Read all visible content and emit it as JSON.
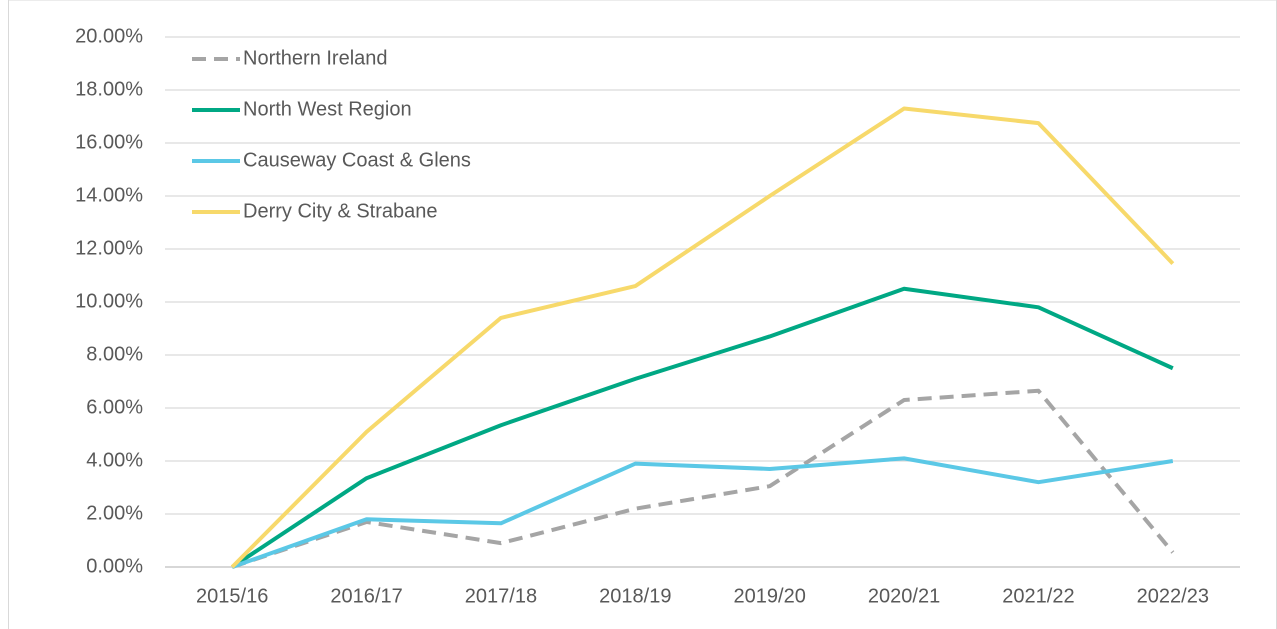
{
  "chart_data": {
    "type": "line",
    "categories": [
      "2015/16",
      "2016/17",
      "2017/18",
      "2018/19",
      "2019/20",
      "2020/21",
      "2021/22",
      "2022/23"
    ],
    "series": [
      {
        "name": "Northern Ireland",
        "color": "#a5a5a5",
        "dashed": true,
        "values": [
          0,
          1.7,
          0.9,
          2.2,
          3.05,
          6.3,
          6.65,
          0.55
        ]
      },
      {
        "name": "North West Region",
        "color": "#00a884",
        "values": [
          0,
          3.35,
          5.35,
          7.1,
          8.7,
          10.5,
          9.8,
          7.5
        ]
      },
      {
        "name": "Causeway Coast & Glens",
        "color": "#5bc8e6",
        "values": [
          0,
          1.8,
          1.65,
          3.9,
          3.7,
          4.1,
          3.2,
          4.0
        ]
      },
      {
        "name": "Derry City & Strabane",
        "color": "#f7d96b",
        "values": [
          0,
          5.1,
          9.4,
          10.6,
          14.0,
          17.3,
          16.75,
          11.45
        ]
      }
    ],
    "ylim": [
      0,
      20
    ],
    "yticks": [
      {
        "value": 0,
        "label": "0.00%"
      },
      {
        "value": 2,
        "label": "2.00%"
      },
      {
        "value": 4,
        "label": "4.00%"
      },
      {
        "value": 6,
        "label": "6.00%"
      },
      {
        "value": 8,
        "label": "8.00%"
      },
      {
        "value": 10,
        "label": "10.00%"
      },
      {
        "value": 12,
        "label": "12.00%"
      },
      {
        "value": 14,
        "label": "14.00%"
      },
      {
        "value": 16,
        "label": "16.00%"
      },
      {
        "value": 18,
        "label": "18.00%"
      },
      {
        "value": 20,
        "label": "20.00%"
      }
    ],
    "grid": true,
    "legend": "top-left"
  }
}
